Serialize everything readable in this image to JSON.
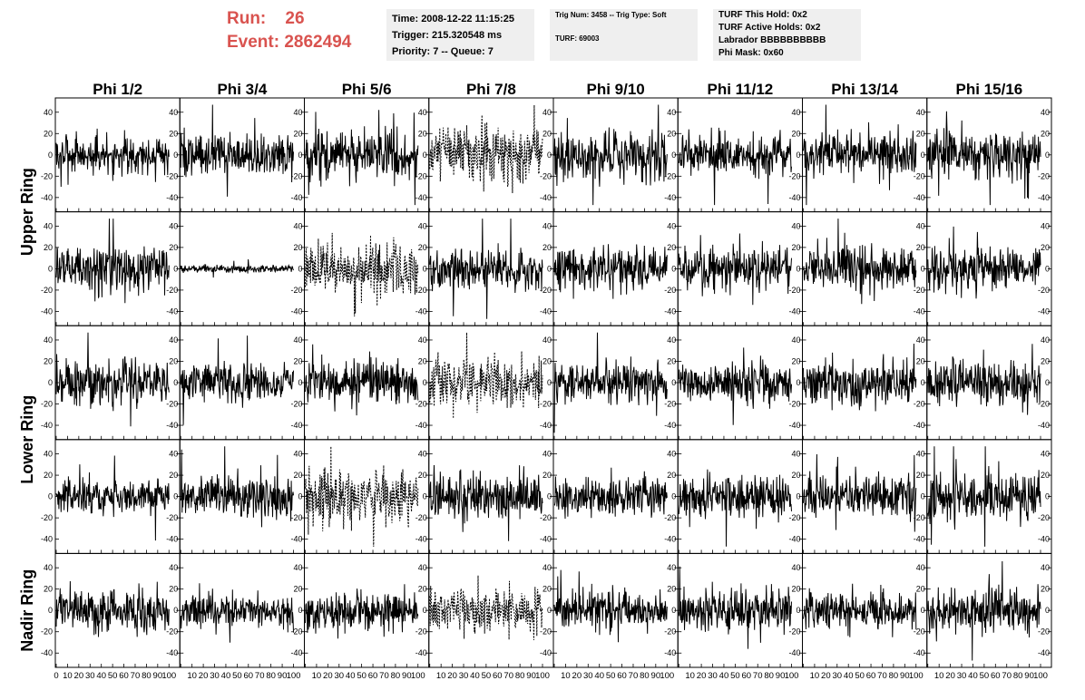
{
  "header": {
    "run_label": "Run:",
    "run_value": "26",
    "event_label": "Event:",
    "event_value": "2862494"
  },
  "info_time": {
    "line1": "Time: 2008-12-22 11:15:25",
    "line2": "Trigger: 215.320548 ms",
    "line3": "Priority: 7 -- Queue: 7"
  },
  "info_trig": {
    "line1": "Trig Num: 3458 -- Trig Type: Soft",
    "line2": "TURF: 69003"
  },
  "info_turf": {
    "line1": "TURF This Hold: 0x2",
    "line2": "TURF Active Holds: 0x2",
    "line3": "Labrador BBBBBBBBBB",
    "line4": "Phi Mask: 0x60"
  },
  "chart_data": {
    "type": "line",
    "columns": [
      "Phi 1/2",
      "Phi 3/4",
      "Phi 5/6",
      "Phi 7/8",
      "Phi 9/10",
      "Phi 11/12",
      "Phi 13/14",
      "Phi 15/16"
    ],
    "ring_labels": [
      {
        "label": "Upper Ring",
        "rows": [
          0,
          1
        ]
      },
      {
        "label": "Lower Ring",
        "rows": [
          2,
          3
        ]
      },
      {
        "label": "Nadir Ring",
        "rows": [
          4
        ]
      }
    ],
    "xlim": [
      0,
      100
    ],
    "ylim": [
      -50,
      50
    ],
    "x_ticks": [
      0,
      10,
      20,
      30,
      40,
      50,
      60,
      70,
      80,
      90,
      100
    ],
    "y_ticks": [
      -40,
      -20,
      0,
      20,
      40
    ],
    "samples_per_trace": 260,
    "amplitude": [
      [
        12,
        12,
        14,
        16,
        14,
        12,
        13,
        14
      ],
      [
        13,
        2,
        16,
        12,
        12,
        12,
        13,
        13
      ],
      [
        13,
        11,
        13,
        15,
        12,
        12,
        13,
        13
      ],
      [
        10,
        13,
        16,
        13,
        11,
        13,
        12,
        14
      ],
      [
        12,
        10,
        11,
        13,
        12,
        12,
        11,
        12
      ]
    ],
    "dashed": [
      [
        false,
        false,
        false,
        true,
        false,
        false,
        false,
        false
      ],
      [
        false,
        false,
        true,
        false,
        false,
        false,
        false,
        false
      ],
      [
        false,
        false,
        false,
        true,
        false,
        false,
        false,
        false
      ],
      [
        false,
        false,
        true,
        false,
        false,
        false,
        false,
        false
      ],
      [
        false,
        false,
        false,
        true,
        false,
        false,
        false,
        false
      ]
    ]
  }
}
